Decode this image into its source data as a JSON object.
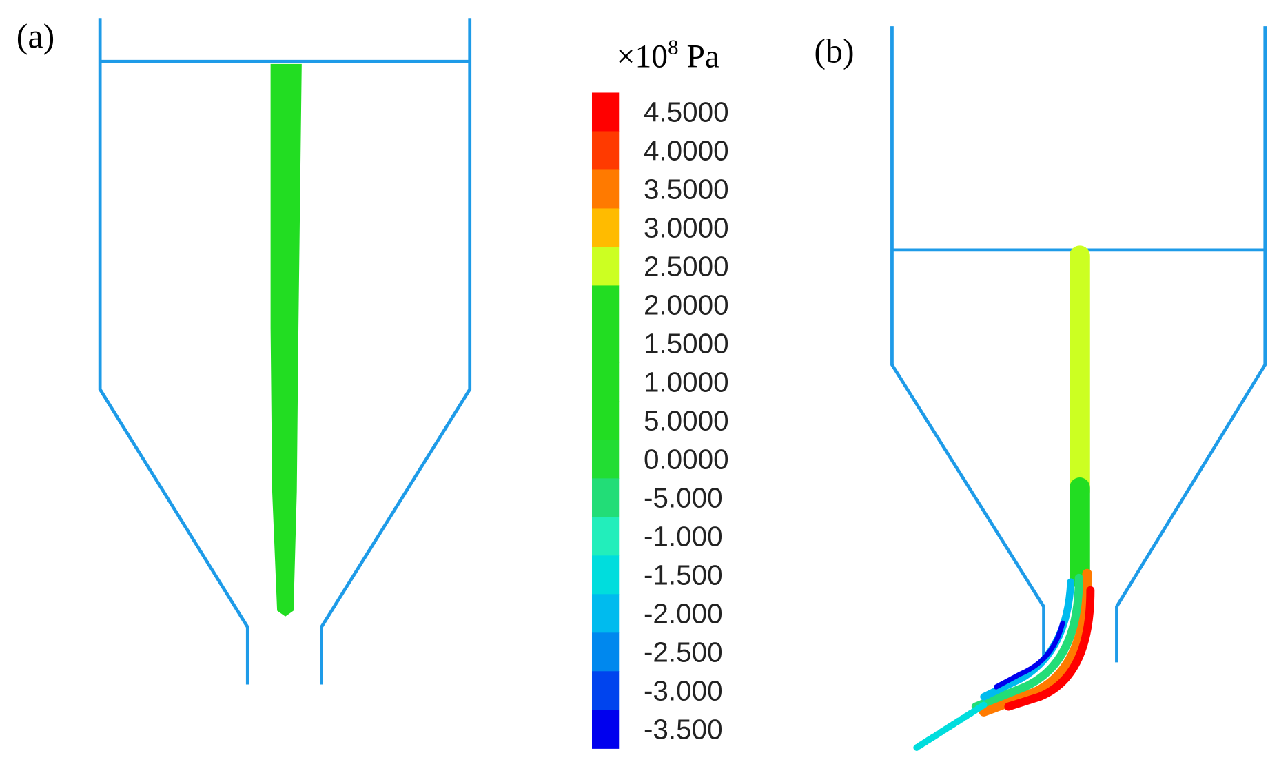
{
  "panels": {
    "a": {
      "label": "(a)"
    },
    "b": {
      "label": "(b)"
    }
  },
  "colorbar": {
    "unit": {
      "base": "×10",
      "exponent": "8",
      "suffix": "Pa"
    },
    "bands": [
      {
        "label": "4.5000",
        "color": "#ff0000"
      },
      {
        "label": "4.0000",
        "color": "#ff3a00"
      },
      {
        "label": "3.5000",
        "color": "#ff7a00"
      },
      {
        "label": "3.0000",
        "color": "#ffbb00"
      },
      {
        "label": "2.5000",
        "color": "#ccff22"
      },
      {
        "label": "2.0000",
        "color": "#22dd22"
      },
      {
        "label": "1.5000",
        "color": "#22dd22"
      },
      {
        "label": "1.0000",
        "color": "#22dd22"
      },
      {
        "label": "5.0000",
        "color": "#22dd22"
      },
      {
        "label": "0.0000",
        "color": "#22dd33"
      },
      {
        "label": "-5.000",
        "color": "#22dd77"
      },
      {
        "label": "-1.000",
        "color": "#22eebb"
      },
      {
        "label": "-1.500",
        "color": "#00dddd"
      },
      {
        "label": "-2.000",
        "color": "#00bbee"
      },
      {
        "label": "-2.500",
        "color": "#0088ee"
      },
      {
        "label": "-3.000",
        "color": "#0044ee"
      },
      {
        "label": "-3.500",
        "color": "#0000ee"
      }
    ]
  }
}
